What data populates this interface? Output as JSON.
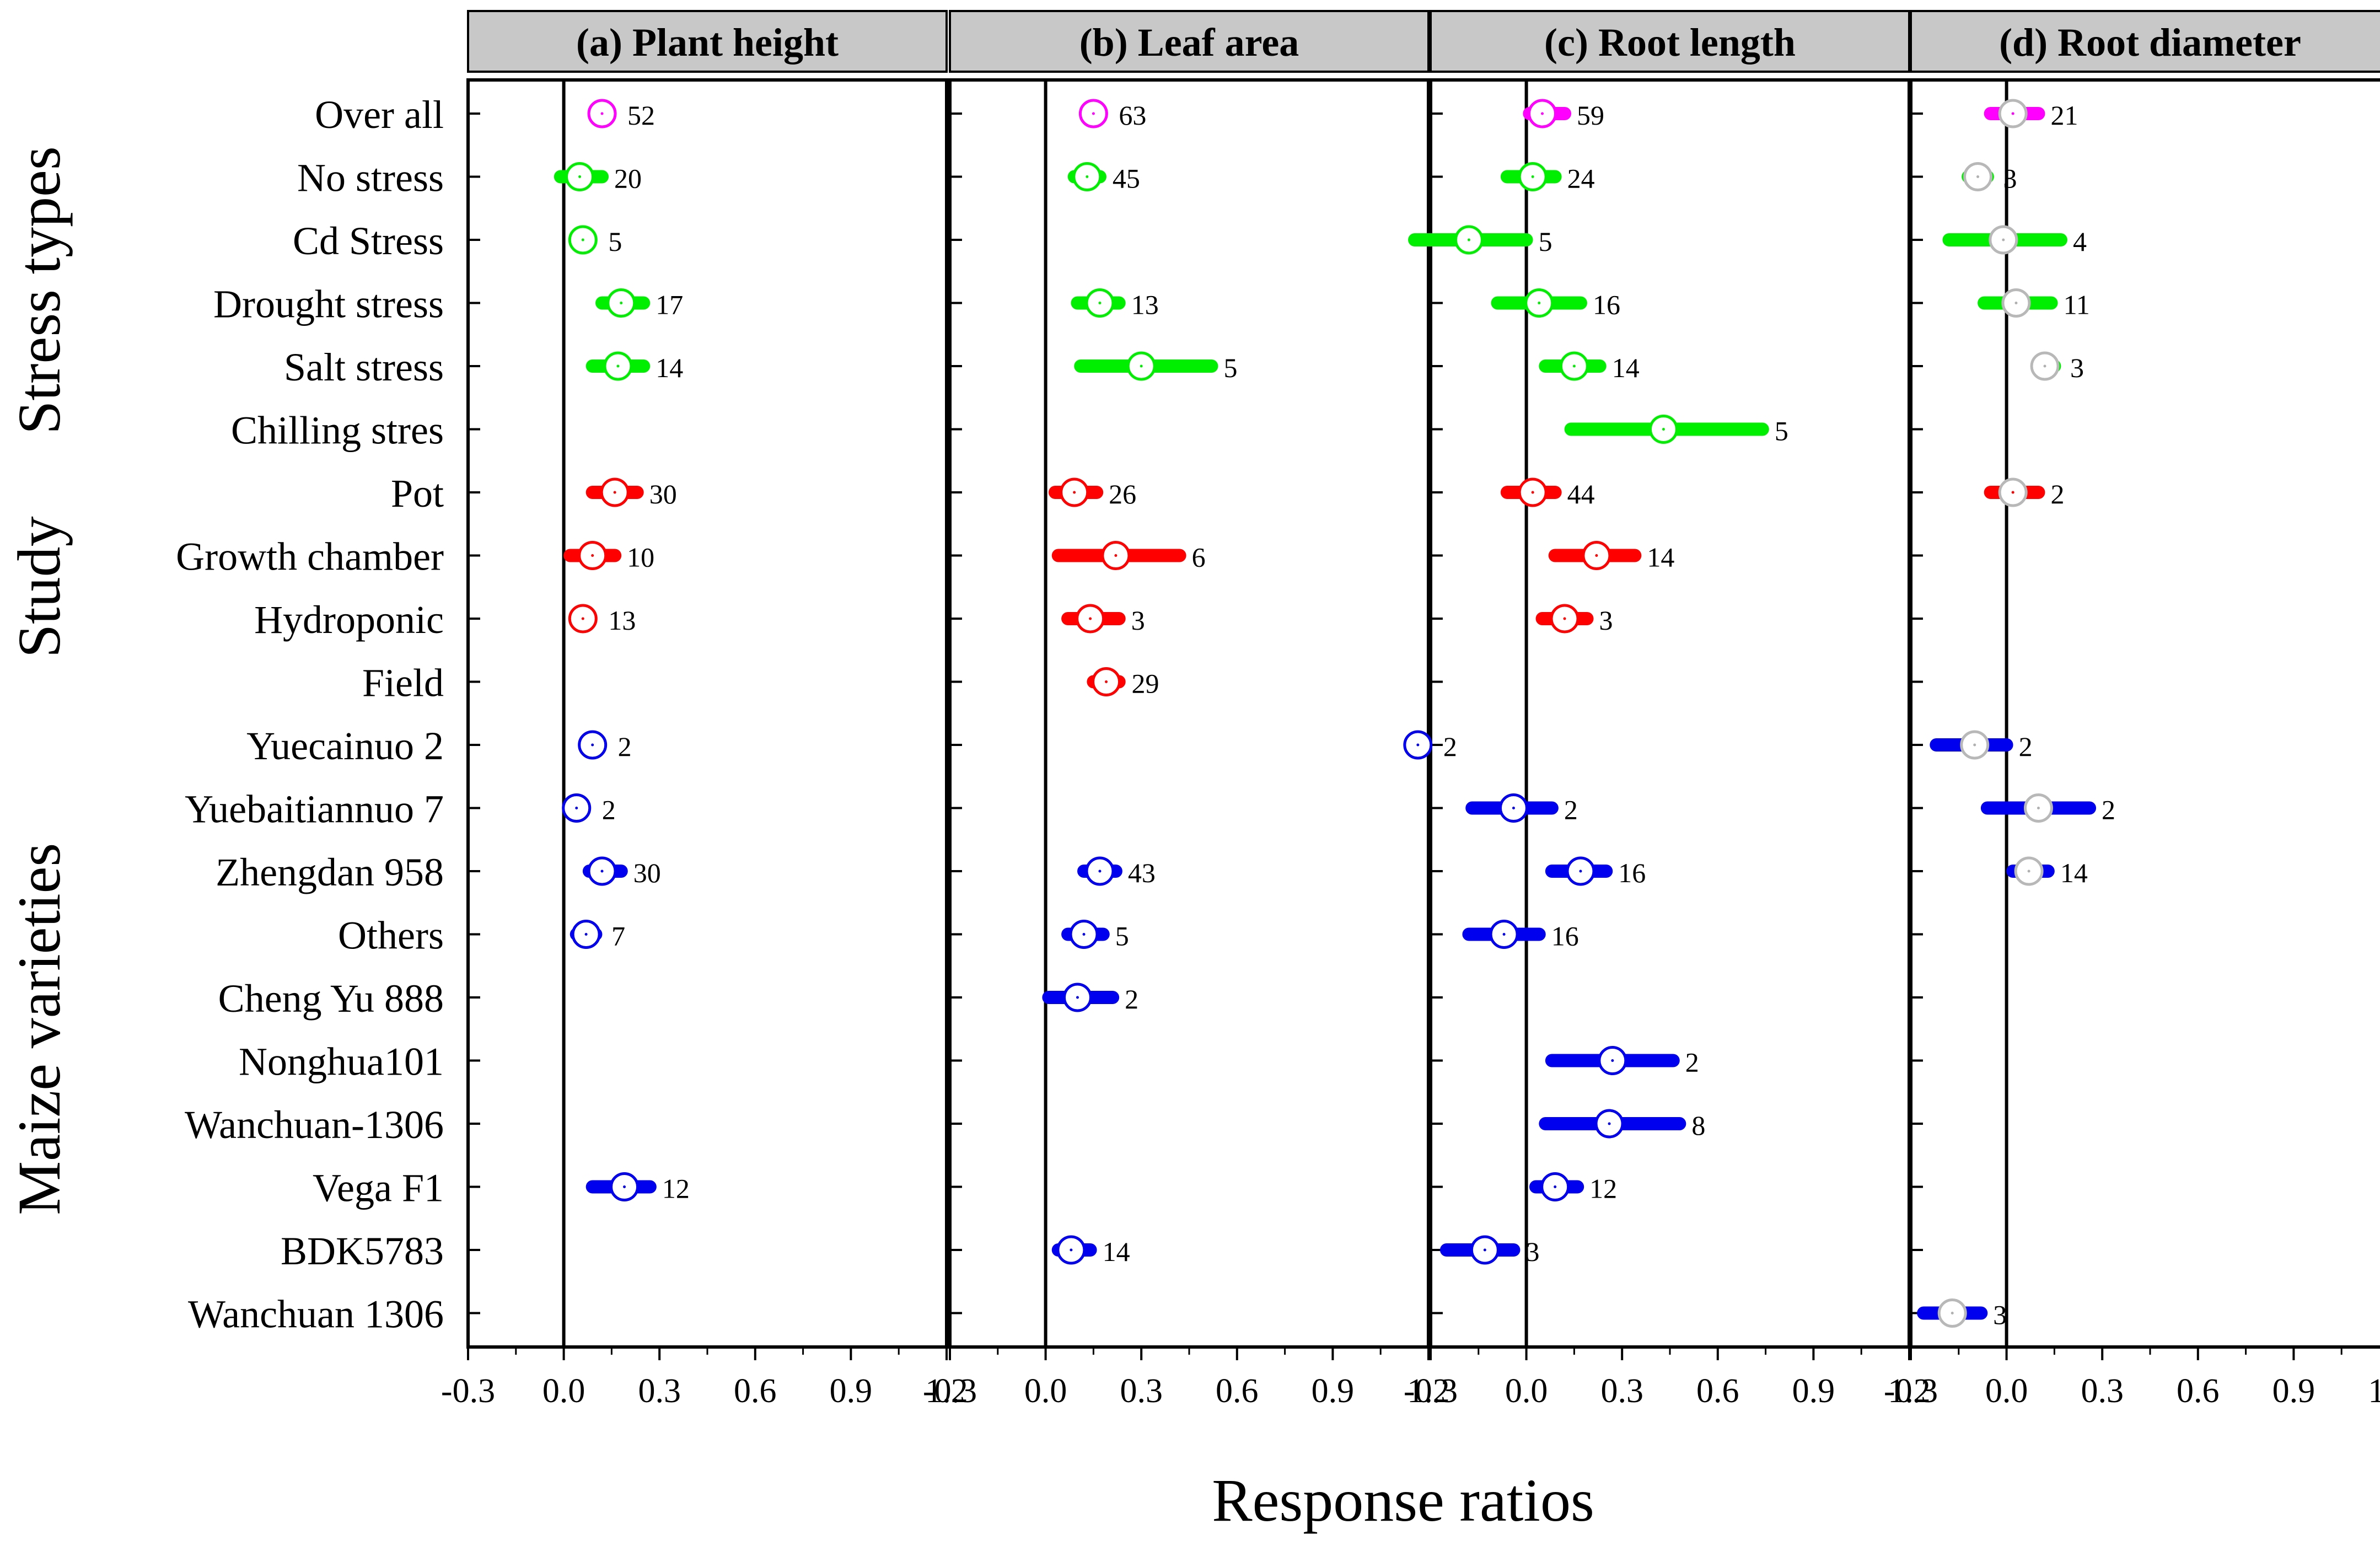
{
  "colors": {
    "overall": "#ff00ff",
    "stress": "#00ee00",
    "study": "#ff0000",
    "variety": "#0000ee",
    "header_bg": "#c8c8c8",
    "axis": "#000000",
    "marker_fill": "#ffffff"
  },
  "figure": {
    "xlabel": "Response ratios",
    "group_labels": [
      "Stress types",
      "Study",
      "Maize varieties"
    ]
  },
  "chart_data": {
    "type": "forest",
    "xlim": [
      -0.3,
      1.2
    ],
    "xticks": [
      "-0.3",
      "0.0",
      "0.3",
      "0.6",
      "0.9",
      "1.2"
    ],
    "categories": [
      "Over all",
      "No stress",
      "Cd Stress",
      "Drought stress",
      "Salt stress",
      "Chilling stres",
      "Pot",
      "Growth chamber",
      "Hydroponic",
      "Field",
      "Yuecainuo 2",
      "Yuebaitiannuo 7",
      "Zhengdan 958",
      "Others",
      "Cheng Yu 888",
      "Nonghua101",
      "Wanchuan-1306",
      "Vega F1",
      "BDK5783",
      "Wanchuan 1306"
    ],
    "category_groups": [
      "overall",
      "stress",
      "stress",
      "stress",
      "stress",
      "stress",
      "study",
      "study",
      "study",
      "study",
      "variety",
      "variety",
      "variety",
      "variety",
      "variety",
      "variety",
      "variety",
      "variety",
      "variety",
      "variety"
    ],
    "panels": [
      {
        "title": "(a) Plant height",
        "points": [
          {
            "row": 0,
            "mean": 0.12,
            "lo": 0.1,
            "hi": 0.14,
            "n": "52"
          },
          {
            "row": 1,
            "mean": 0.05,
            "lo": -0.01,
            "hi": 0.12,
            "n": "20"
          },
          {
            "row": 2,
            "mean": 0.06,
            "lo": 0.05,
            "hi": 0.07,
            "n": "5"
          },
          {
            "row": 3,
            "mean": 0.18,
            "lo": 0.12,
            "hi": 0.25,
            "n": "17"
          },
          {
            "row": 4,
            "mean": 0.17,
            "lo": 0.09,
            "hi": 0.25,
            "n": "14"
          },
          {
            "row": 6,
            "mean": 0.16,
            "lo": 0.09,
            "hi": 0.23,
            "n": "30"
          },
          {
            "row": 7,
            "mean": 0.09,
            "lo": 0.02,
            "hi": 0.16,
            "n": "10"
          },
          {
            "row": 8,
            "mean": 0.06,
            "lo": 0.04,
            "hi": 0.08,
            "n": "13"
          },
          {
            "row": 10,
            "mean": 0.09,
            "lo": 0.09,
            "hi": 0.09,
            "n": "2"
          },
          {
            "row": 11,
            "mean": 0.04,
            "lo": 0.04,
            "hi": 0.04,
            "n": "2"
          },
          {
            "row": 12,
            "mean": 0.12,
            "lo": 0.08,
            "hi": 0.18,
            "n": "30"
          },
          {
            "row": 13,
            "mean": 0.07,
            "lo": 0.04,
            "hi": 0.1,
            "n": "7"
          },
          {
            "row": 17,
            "mean": 0.19,
            "lo": 0.09,
            "hi": 0.27,
            "n": "12"
          }
        ]
      },
      {
        "title": "(b) Leaf area",
        "points": [
          {
            "row": 0,
            "mean": 0.15,
            "lo": 0.13,
            "hi": 0.17,
            "n": "63"
          },
          {
            "row": 1,
            "mean": 0.13,
            "lo": 0.09,
            "hi": 0.17,
            "n": "45"
          },
          {
            "row": 3,
            "mean": 0.17,
            "lo": 0.1,
            "hi": 0.23,
            "n": "13"
          },
          {
            "row": 4,
            "mean": 0.3,
            "lo": 0.11,
            "hi": 0.52,
            "n": "5"
          },
          {
            "row": 6,
            "mean": 0.09,
            "lo": 0.03,
            "hi": 0.16,
            "n": "26"
          },
          {
            "row": 7,
            "mean": 0.22,
            "lo": 0.04,
            "hi": 0.42,
            "n": "6"
          },
          {
            "row": 8,
            "mean": 0.14,
            "lo": 0.07,
            "hi": 0.23,
            "n": "3"
          },
          {
            "row": 9,
            "mean": 0.19,
            "lo": 0.15,
            "hi": 0.23,
            "n": "29"
          },
          {
            "row": 12,
            "mean": 0.17,
            "lo": 0.12,
            "hi": 0.22,
            "n": "43"
          },
          {
            "row": 13,
            "mean": 0.12,
            "lo": 0.07,
            "hi": 0.18,
            "n": "5"
          },
          {
            "row": 14,
            "mean": 0.1,
            "lo": 0.01,
            "hi": 0.21,
            "n": "2"
          },
          {
            "row": 18,
            "mean": 0.08,
            "lo": 0.04,
            "hi": 0.14,
            "n": "14"
          }
        ]
      },
      {
        "title": "(c) Root length",
        "points": [
          {
            "row": 0,
            "mean": 0.05,
            "lo": 0.01,
            "hi": 0.12,
            "n": "59"
          },
          {
            "row": 1,
            "mean": 0.02,
            "lo": -0.06,
            "hi": 0.09,
            "n": "24"
          },
          {
            "row": 2,
            "mean": -0.18,
            "lo": -0.35,
            "hi": 0.0,
            "n": "5"
          },
          {
            "row": 3,
            "mean": 0.04,
            "lo": -0.09,
            "hi": 0.17,
            "n": "16"
          },
          {
            "row": 4,
            "mean": 0.15,
            "lo": 0.06,
            "hi": 0.23,
            "n": "14"
          },
          {
            "row": 5,
            "mean": 0.43,
            "lo": 0.14,
            "hi": 0.74,
            "n": "5"
          },
          {
            "row": 6,
            "mean": 0.02,
            "lo": -0.06,
            "hi": 0.09,
            "n": "44"
          },
          {
            "row": 7,
            "mean": 0.22,
            "lo": 0.09,
            "hi": 0.34,
            "n": "14"
          },
          {
            "row": 8,
            "mean": 0.12,
            "lo": 0.05,
            "hi": 0.19,
            "n": "3"
          },
          {
            "row": 10,
            "mean": -0.34,
            "lo": -0.34,
            "hi": -0.34,
            "n": "2"
          },
          {
            "row": 11,
            "mean": -0.04,
            "lo": -0.17,
            "hi": 0.08,
            "n": "2"
          },
          {
            "row": 12,
            "mean": 0.17,
            "lo": 0.08,
            "hi": 0.25,
            "n": "16"
          },
          {
            "row": 13,
            "mean": -0.07,
            "lo": -0.18,
            "hi": 0.04,
            "n": "16"
          },
          {
            "row": 15,
            "mean": 0.27,
            "lo": 0.08,
            "hi": 0.46,
            "n": "2"
          },
          {
            "row": 16,
            "mean": 0.26,
            "lo": 0.06,
            "hi": 0.48,
            "n": "8"
          },
          {
            "row": 17,
            "mean": 0.09,
            "lo": 0.03,
            "hi": 0.16,
            "n": "12"
          },
          {
            "row": 18,
            "mean": -0.13,
            "lo": -0.25,
            "hi": -0.04,
            "n": "3"
          }
        ]
      },
      {
        "title": "(d) Root diameter",
        "points": [
          {
            "row": 0,
            "mean": 0.02,
            "lo": -0.05,
            "hi": 0.1,
            "n": "21"
          },
          {
            "row": 1,
            "mean": -0.09,
            "lo": -0.12,
            "hi": -0.06,
            "n": "3"
          },
          {
            "row": 2,
            "mean": -0.01,
            "lo": -0.18,
            "hi": 0.17,
            "n": "4"
          },
          {
            "row": 3,
            "mean": 0.03,
            "lo": -0.07,
            "hi": 0.14,
            "n": "11"
          },
          {
            "row": 4,
            "mean": 0.12,
            "lo": 0.1,
            "hi": 0.15,
            "n": "3"
          },
          {
            "row": 6,
            "mean": 0.02,
            "lo": -0.05,
            "hi": 0.1,
            "n": "2"
          },
          {
            "row": 10,
            "mean": -0.1,
            "lo": -0.22,
            "hi": 0.0,
            "n": "2"
          },
          {
            "row": 11,
            "mean": 0.1,
            "lo": -0.06,
            "hi": 0.26,
            "n": "2"
          },
          {
            "row": 12,
            "mean": 0.07,
            "lo": 0.02,
            "hi": 0.13,
            "n": "14"
          },
          {
            "row": 19,
            "mean": -0.17,
            "lo": -0.26,
            "hi": -0.08,
            "n": "3"
          }
        ]
      }
    ]
  }
}
